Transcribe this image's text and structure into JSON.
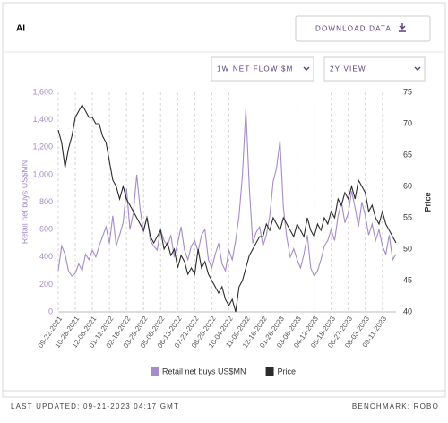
{
  "header": {
    "title": "AI",
    "download": "DOWNLOAD DATA"
  },
  "controls": {
    "metric": "1W NET FLOW $M",
    "view": "2Y VIEW"
  },
  "footer": {
    "updated": "LAST UPDATED: 09-21-2023 04:17 GMT",
    "benchmark": "BENCHMARK: ROBO"
  },
  "chart_data": {
    "type": "line",
    "ylabel": "Retail net buys US$MN",
    "y2label": "Price",
    "categories": [
      "09-22-2021",
      null,
      null,
      null,
      null,
      "10-28-2021",
      null,
      null,
      null,
      null,
      "12-06-2021",
      null,
      null,
      null,
      null,
      "01-12-2022",
      null,
      null,
      null,
      null,
      "02-18-2022",
      null,
      null,
      null,
      null,
      "03-29-2022",
      null,
      null,
      null,
      null,
      "05-05-2022",
      null,
      null,
      null,
      null,
      "06-13-2022",
      null,
      null,
      null,
      null,
      "07-21-2022",
      null,
      null,
      null,
      null,
      "08-26-2022",
      null,
      null,
      null,
      null,
      "10-04-2022",
      null,
      null,
      null,
      null,
      "11-09-2022",
      null,
      null,
      null,
      null,
      "12-16-2022",
      null,
      null,
      null,
      null,
      "01-26-2023",
      null,
      null,
      null,
      null,
      "03-06-2023",
      null,
      null,
      null,
      null,
      "04-12-2023",
      null,
      null,
      null,
      null,
      "05-18-2023",
      null,
      null,
      null,
      null,
      "06-27-2023",
      null,
      null,
      null,
      null,
      "08-03-2023",
      null,
      null,
      null,
      null,
      "09-11-2023",
      null,
      null,
      null,
      null
    ],
    "series": [
      {
        "name": "Retail net buys US$MN",
        "color": "#a68bc9",
        "values": [
          300,
          480,
          420,
          300,
          260,
          280,
          350,
          300,
          420,
          380,
          450,
          400,
          480,
          550,
          620,
          500,
          700,
          480,
          560,
          650,
          900,
          600,
          720,
          1000,
          750,
          580,
          700,
          520,
          480,
          450,
          600,
          520,
          480,
          560,
          400,
          500,
          620,
          450,
          380,
          480,
          520,
          440,
          560,
          600,
          380,
          320,
          420,
          500,
          350,
          300,
          450,
          380,
          520,
          700,
          1000,
          1480,
          900,
          500,
          580,
          620,
          480,
          560,
          700,
          950,
          1050,
          1250,
          760,
          540,
          400,
          460,
          380,
          320,
          420,
          560,
          320,
          260,
          300,
          380,
          480,
          520,
          600,
          520,
          700,
          800,
          650,
          720,
          880,
          760,
          620,
          800,
          700,
          560,
          640,
          520,
          600,
          480,
          420,
          560,
          380,
          420
        ]
      },
      {
        "name": "Price",
        "color": "#2b2b2b",
        "axis": "y2",
        "values": [
          69,
          67,
          63,
          66,
          68,
          71,
          72,
          73,
          72,
          71,
          71,
          70,
          70,
          68,
          67,
          64,
          61,
          60,
          58,
          60,
          58,
          57,
          56,
          55,
          54,
          53,
          55,
          52,
          51,
          52,
          53,
          50,
          51,
          49,
          50,
          47,
          49,
          48,
          46,
          47,
          46,
          50,
          47,
          48,
          46,
          45,
          44,
          43,
          44,
          42,
          41,
          42,
          40,
          44,
          45,
          47,
          49,
          50,
          51,
          52,
          52,
          54,
          53,
          55,
          54,
          53,
          55,
          54,
          53,
          52,
          54,
          53,
          52,
          55,
          53,
          52,
          54,
          53,
          55,
          54,
          56,
          55,
          58,
          57,
          59,
          58,
          60,
          58,
          61,
          60,
          59,
          56,
          57,
          55,
          54,
          56,
          54,
          53,
          52,
          51
        ]
      }
    ],
    "ylim": [
      0,
      1600
    ],
    "yticks": [
      0,
      200,
      400,
      600,
      800,
      {
        "value": 1000,
        "label": "1,000"
      },
      {
        "value": 1200,
        "label": "1,200"
      },
      {
        "value": 1400,
        "label": "1,400"
      },
      {
        "value": 1600,
        "label": "1,600"
      }
    ],
    "y2lim": [
      40,
      75
    ],
    "y2ticks": [
      40,
      45,
      50,
      55,
      60,
      65,
      70,
      75
    ],
    "grid": true,
    "legend": "bottom"
  }
}
